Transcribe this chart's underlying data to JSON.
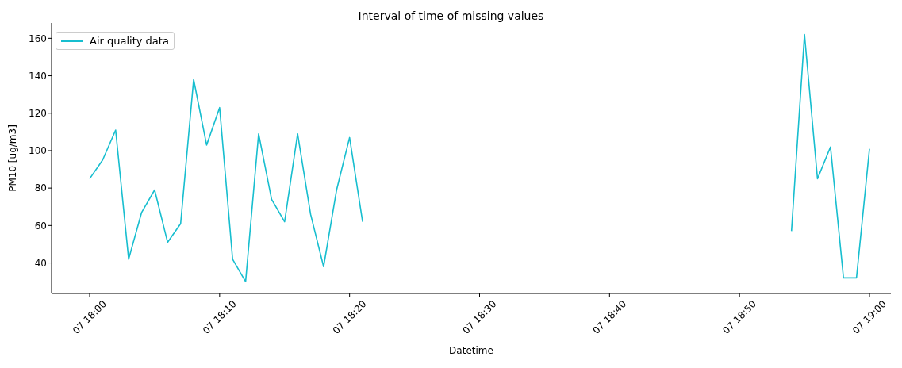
{
  "chart_data": {
    "type": "line",
    "title": "Interval of time of missing values",
    "xlabel": "Datetime",
    "ylabel": "PM10 [ug/m3]",
    "categories": [
      "07 18:00",
      null,
      null,
      null,
      null,
      null,
      null,
      null,
      null,
      null,
      "07 18:10",
      null,
      null,
      null,
      null,
      null,
      null,
      null,
      null,
      null,
      "07 18:20",
      null,
      null,
      null,
      null,
      null,
      null,
      null,
      null,
      null,
      "07 18:30",
      null,
      null,
      null,
      null,
      null,
      null,
      null,
      null,
      null,
      "07 18:40",
      null,
      null,
      null,
      null,
      null,
      null,
      null,
      null,
      null,
      "07 18:50",
      null,
      null,
      null,
      null,
      null,
      null,
      null,
      null,
      null,
      "07 19:00"
    ],
    "series": [
      {
        "name": "Air quality data",
        "color": "#17becf",
        "values": [
          85,
          95,
          111,
          42,
          67,
          79,
          51,
          61,
          138,
          103,
          123,
          42,
          30,
          109,
          74,
          62,
          109,
          66,
          38,
          79,
          107,
          62,
          null,
          null,
          null,
          null,
          null,
          null,
          null,
          null,
          null,
          null,
          null,
          null,
          null,
          null,
          null,
          null,
          null,
          null,
          null,
          null,
          null,
          null,
          null,
          null,
          null,
          null,
          null,
          null,
          null,
          null,
          null,
          null,
          57,
          162,
          85,
          102,
          32,
          32,
          101
        ]
      }
    ],
    "ylim": [
      23.7,
      168.2
    ],
    "yticks": [
      40,
      60,
      80,
      100,
      120,
      140,
      160
    ],
    "legend": "top left",
    "marker": "none",
    "line_style": "solid"
  }
}
